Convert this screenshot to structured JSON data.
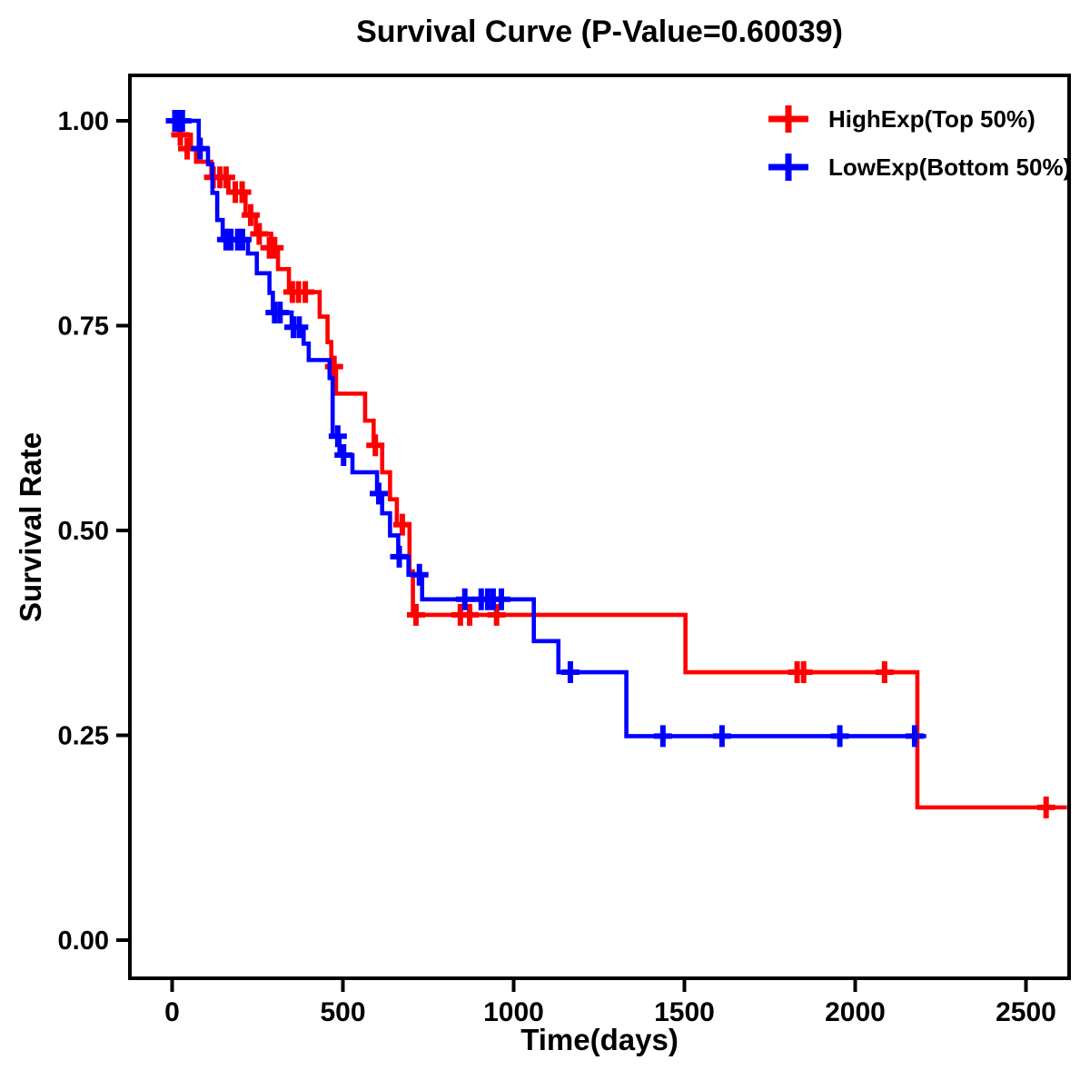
{
  "chart_data": {
    "type": "line",
    "subtype": "kaplan-meier-step-survival",
    "title": "Survival Curve (P-Value=0.60039)",
    "p_value": 0.60039,
    "xlabel": "Time(days)",
    "ylabel": "Survival Rate",
    "x_ticks": [
      0,
      500,
      1000,
      1500,
      2000,
      2500
    ],
    "y_ticks": [
      0.0,
      0.25,
      0.5,
      0.75,
      1.0
    ],
    "y_tick_labels": [
      "0.00",
      "0.25",
      "0.50",
      "0.75",
      "1.00"
    ],
    "xlim": [
      -120,
      2630
    ],
    "ylim": [
      -0.05,
      1.06
    ],
    "grid": false,
    "legend_position": "top-right-inside",
    "frame_color": "#000000",
    "series": [
      {
        "name": "HighExp(Top 50%)",
        "color": "#FF0000",
        "marker": "plus-censor",
        "steps": [
          [
            0,
            1.0
          ],
          [
            20,
            0.983
          ],
          [
            55,
            0.966
          ],
          [
            70,
            0.95
          ],
          [
            115,
            0.931
          ],
          [
            165,
            0.913
          ],
          [
            215,
            0.885
          ],
          [
            245,
            0.862
          ],
          [
            290,
            0.845
          ],
          [
            310,
            0.819
          ],
          [
            342,
            0.791
          ],
          [
            432,
            0.761
          ],
          [
            455,
            0.73
          ],
          [
            466,
            0.7
          ],
          [
            480,
            0.667
          ],
          [
            565,
            0.634
          ],
          [
            590,
            0.604
          ],
          [
            615,
            0.571
          ],
          [
            638,
            0.538
          ],
          [
            658,
            0.507
          ],
          [
            695,
            0.45
          ],
          [
            705,
            0.397
          ],
          [
            1503,
            0.327
          ],
          [
            2182,
            0.162
          ]
        ],
        "end_time": 2620,
        "censors": [
          [
            24,
            0.983
          ],
          [
            44,
            0.966
          ],
          [
            120,
            0.931
          ],
          [
            140,
            0.931
          ],
          [
            158,
            0.931
          ],
          [
            185,
            0.913
          ],
          [
            205,
            0.913
          ],
          [
            230,
            0.885
          ],
          [
            255,
            0.862
          ],
          [
            285,
            0.845
          ],
          [
            300,
            0.845
          ],
          [
            352,
            0.791
          ],
          [
            370,
            0.791
          ],
          [
            390,
            0.791
          ],
          [
            474,
            0.7
          ],
          [
            595,
            0.604
          ],
          [
            674,
            0.507
          ],
          [
            714,
            0.397
          ],
          [
            844,
            0.397
          ],
          [
            871,
            0.397
          ],
          [
            950,
            0.397
          ],
          [
            1830,
            0.327
          ],
          [
            1849,
            0.327
          ],
          [
            2086,
            0.327
          ],
          [
            2559,
            0.162
          ]
        ]
      },
      {
        "name": "LowExp(Bottom 50%)",
        "color": "#0000FF",
        "marker": "plus-censor",
        "steps": [
          [
            0,
            1.0
          ],
          [
            78,
            0.966
          ],
          [
            105,
            0.947
          ],
          [
            118,
            0.912
          ],
          [
            132,
            0.879
          ],
          [
            148,
            0.855
          ],
          [
            222,
            0.838
          ],
          [
            248,
            0.814
          ],
          [
            285,
            0.79
          ],
          [
            295,
            0.766
          ],
          [
            350,
            0.748
          ],
          [
            385,
            0.728
          ],
          [
            400,
            0.708
          ],
          [
            461,
            0.686
          ],
          [
            470,
            0.615
          ],
          [
            490,
            0.592
          ],
          [
            528,
            0.571
          ],
          [
            600,
            0.545
          ],
          [
            615,
            0.521
          ],
          [
            638,
            0.494
          ],
          [
            662,
            0.468
          ],
          [
            692,
            0.446
          ],
          [
            732,
            0.416
          ],
          [
            1059,
            0.365
          ],
          [
            1131,
            0.327
          ],
          [
            1330,
            0.249
          ]
        ],
        "end_time": 2208,
        "censors": [
          [
            8,
            1.0
          ],
          [
            18,
            1.0
          ],
          [
            30,
            1.0
          ],
          [
            82,
            0.966
          ],
          [
            158,
            0.855
          ],
          [
            172,
            0.855
          ],
          [
            192,
            0.855
          ],
          [
            206,
            0.855
          ],
          [
            300,
            0.766
          ],
          [
            316,
            0.766
          ],
          [
            355,
            0.748
          ],
          [
            372,
            0.748
          ],
          [
            485,
            0.615
          ],
          [
            502,
            0.592
          ],
          [
            605,
            0.545
          ],
          [
            665,
            0.468
          ],
          [
            724,
            0.446
          ],
          [
            857,
            0.416
          ],
          [
            905,
            0.416
          ],
          [
            924,
            0.416
          ],
          [
            940,
            0.416
          ],
          [
            964,
            0.416
          ],
          [
            1166,
            0.327
          ],
          [
            1437,
            0.249
          ],
          [
            1610,
            0.249
          ],
          [
            1955,
            0.249
          ],
          [
            2174,
            0.249
          ]
        ]
      }
    ]
  }
}
